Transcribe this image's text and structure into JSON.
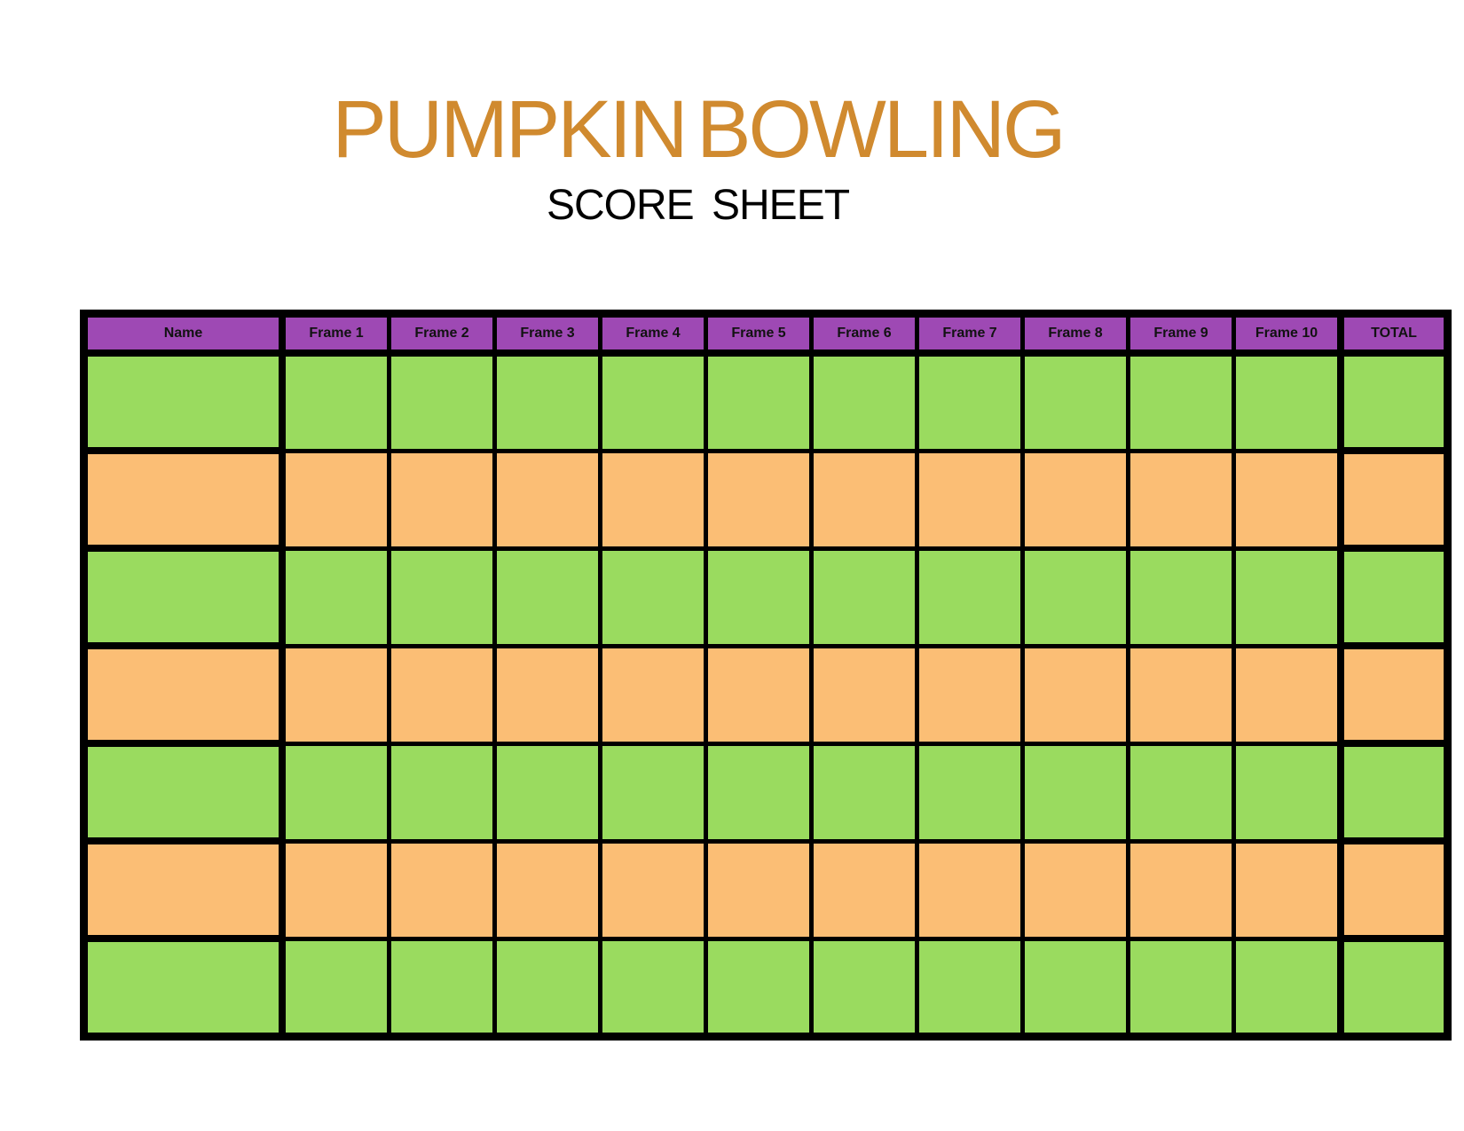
{
  "title": {
    "main": "PUMPKIN BOWLING",
    "subtitle": "SCORE SHEET"
  },
  "colors": {
    "title_text": "#D08A2F",
    "header_bg": "#9E49B4",
    "row_green": "#9ADB5F",
    "row_orange": "#FBBE75",
    "border": "#000000"
  },
  "table": {
    "columns": [
      "Name",
      "Frame 1",
      "Frame 2",
      "Frame 3",
      "Frame 4",
      "Frame 5",
      "Frame 6",
      "Frame 7",
      "Frame 8",
      "Frame 9",
      "Frame 10",
      "TOTAL"
    ],
    "rows": [
      {
        "color": "green",
        "cells": [
          "",
          "",
          "",
          "",
          "",
          "",
          "",
          "",
          "",
          "",
          "",
          ""
        ]
      },
      {
        "color": "orange",
        "cells": [
          "",
          "",
          "",
          "",
          "",
          "",
          "",
          "",
          "",
          "",
          "",
          ""
        ]
      },
      {
        "color": "green",
        "cells": [
          "",
          "",
          "",
          "",
          "",
          "",
          "",
          "",
          "",
          "",
          "",
          ""
        ]
      },
      {
        "color": "orange",
        "cells": [
          "",
          "",
          "",
          "",
          "",
          "",
          "",
          "",
          "",
          "",
          "",
          ""
        ]
      },
      {
        "color": "green",
        "cells": [
          "",
          "",
          "",
          "",
          "",
          "",
          "",
          "",
          "",
          "",
          "",
          ""
        ]
      },
      {
        "color": "orange",
        "cells": [
          "",
          "",
          "",
          "",
          "",
          "",
          "",
          "",
          "",
          "",
          "",
          ""
        ]
      },
      {
        "color": "green",
        "cells": [
          "",
          "",
          "",
          "",
          "",
          "",
          "",
          "",
          "",
          "",
          "",
          ""
        ]
      }
    ]
  }
}
